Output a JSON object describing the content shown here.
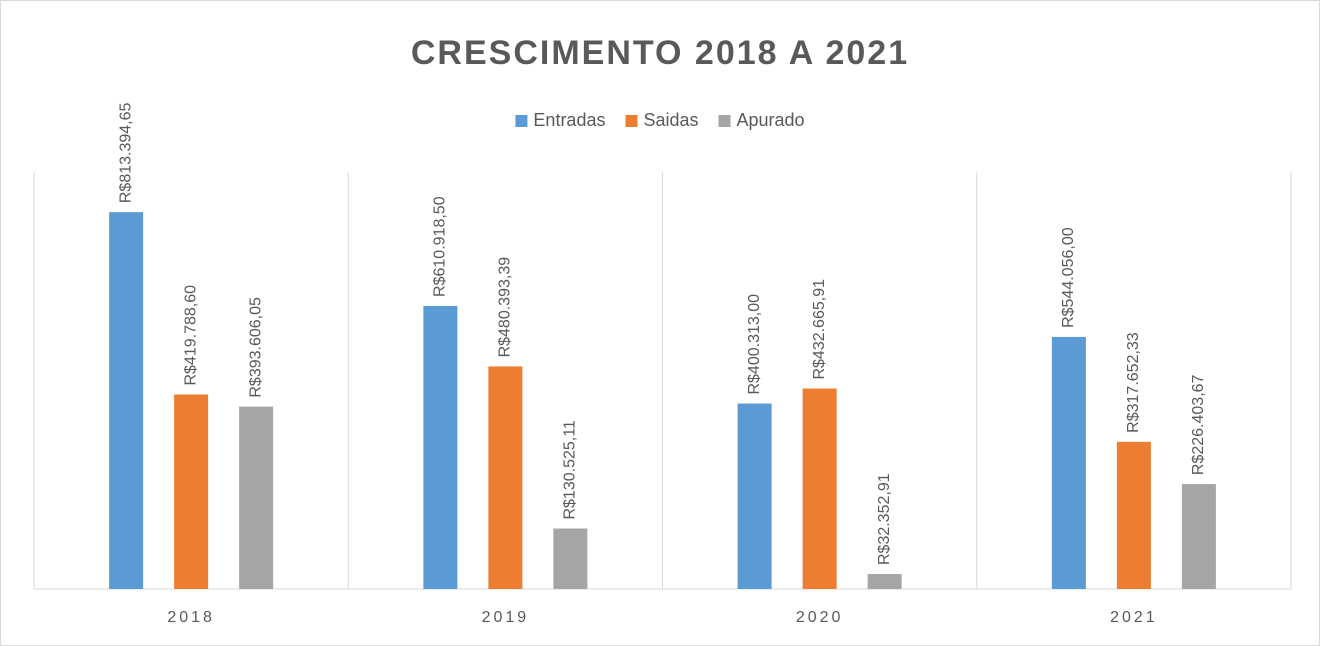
{
  "chart_data": {
    "type": "bar",
    "title": "CRESCIMENTO 2018 A 2021",
    "categories": [
      "2018",
      "2019",
      "2020",
      "2021"
    ],
    "series": [
      {
        "name": "Entradas",
        "color": "#5b9bd5",
        "values": [
          813394.65,
          610918.5,
          400313.0,
          544056.0
        ],
        "value_labels": [
          "R$813.394,65",
          "R$610.918,50",
          "R$400.313,00",
          "R$544.056,00"
        ]
      },
      {
        "name": "Saidas",
        "color": "#ed7d31",
        "values": [
          419788.6,
          480393.39,
          432665.91,
          317652.33
        ],
        "value_labels": [
          "R$419.788,60",
          "R$480.393,39",
          "R$432.665,91",
          "R$317.652,33"
        ]
      },
      {
        "name": "Apurado",
        "color": "#a5a5a5",
        "values": [
          393606.05,
          130525.11,
          32352.91,
          226403.67
        ],
        "value_labels": [
          "R$393.606,05",
          "R$130.525,11",
          "R$32.352,91",
          "R$226.403,67"
        ]
      }
    ],
    "ylim": [
      0,
      900000
    ],
    "legend": "top"
  }
}
